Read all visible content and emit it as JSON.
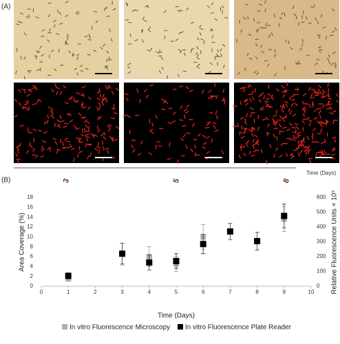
{
  "panel_a": {
    "label": "(A)",
    "days": [
      "3",
      "5",
      "8"
    ],
    "axis_label": "Time (Days)"
  },
  "chart_data": {
    "type": "scatter",
    "panel_label": "(B)",
    "x_label": "Time (Days)",
    "y_label": "Area Coverage (%)",
    "y2_label": "Relative Fluorescence Units × 10⁵",
    "xlim": [
      0,
      10
    ],
    "xticks": [
      0,
      1,
      2,
      3,
      4,
      5,
      6,
      7,
      8,
      9,
      10
    ],
    "ylim": [
      0,
      18
    ],
    "yticks": [
      0,
      2,
      4,
      6,
      8,
      10,
      12,
      14,
      16,
      18
    ],
    "y2lim": [
      0,
      600
    ],
    "y2ticks": [
      0,
      100,
      200,
      300,
      400,
      500,
      600
    ],
    "series": [
      {
        "name": "In vitro Fluorescence Microscopy",
        "color": "#b0b0b0",
        "x": [
          1,
          3,
          4,
          5,
          6,
          9
        ],
        "values": [
          1.5,
          6.5,
          6.0,
          4.5,
          10.0,
          13.6
        ],
        "errors": [
          0.5,
          2.2,
          2.0,
          1.5,
          2.5,
          2.5
        ]
      },
      {
        "name": "In vitro Fluorescence Plate Reader",
        "color": "#000000",
        "axis": "y2",
        "x": [
          1,
          3,
          4,
          5,
          6,
          7,
          8,
          9
        ],
        "values": [
          70,
          220,
          160,
          170,
          285,
          370,
          305,
          475
        ],
        "errors": [
          20,
          70,
          50,
          50,
          65,
          55,
          60,
          80
        ]
      }
    ]
  }
}
